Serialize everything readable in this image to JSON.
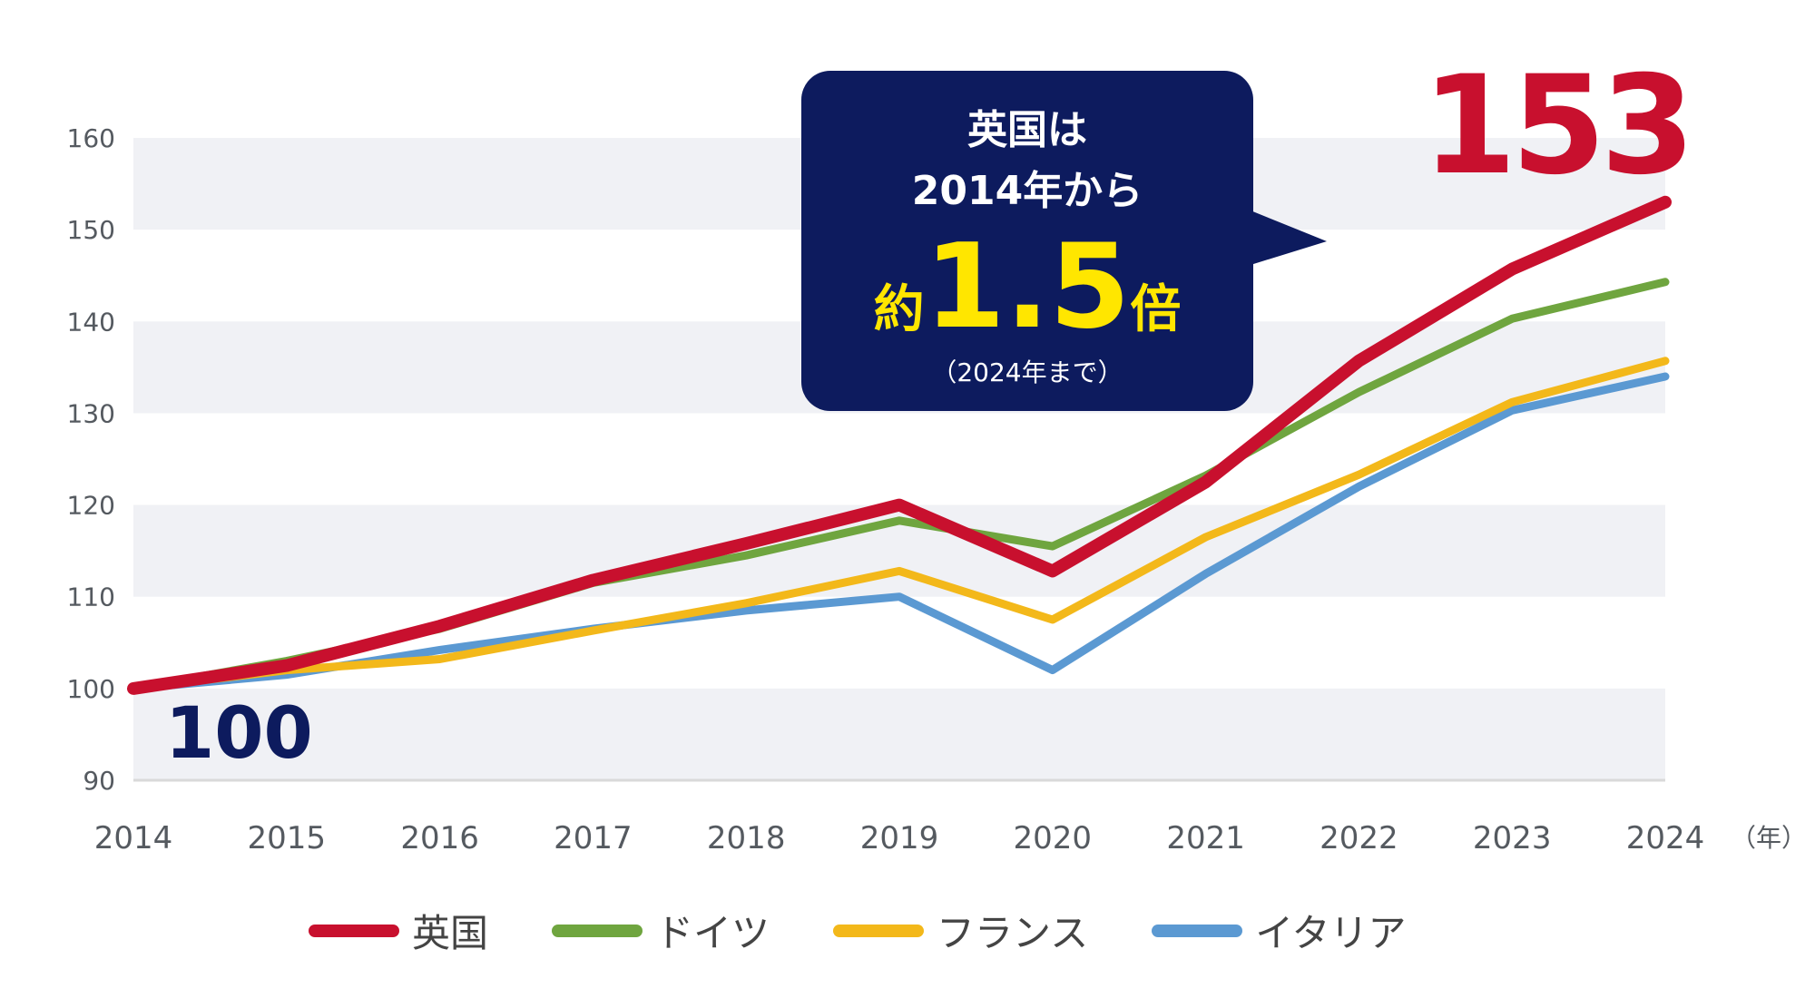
{
  "chart_data": {
    "type": "line",
    "x": [
      "2014",
      "2015",
      "2016",
      "2017",
      "2018",
      "2019",
      "2020",
      "2021",
      "2022",
      "2023",
      "2024"
    ],
    "x_unit": "（年）",
    "y_ticks": [
      90,
      100,
      110,
      120,
      130,
      140,
      150,
      160
    ],
    "ylim": [
      90,
      160
    ],
    "grid": "alternating bands",
    "legend_position": "bottom",
    "series": [
      {
        "name": "英国",
        "color": "#c8102e",
        "values": [
          100,
          102.5,
          106.8,
          111.8,
          115.8,
          120.0,
          112.8,
          122.5,
          135.7,
          145.7,
          153.0
        ]
      },
      {
        "name": "ドイツ",
        "color": "#6fa53f",
        "values": [
          100,
          103.0,
          106.5,
          111.5,
          114.5,
          118.3,
          115.5,
          123.2,
          132.3,
          140.3,
          144.3
        ]
      },
      {
        "name": "フランス",
        "color": "#f3b81a",
        "values": [
          100,
          102.0,
          103.2,
          106.3,
          109.3,
          112.8,
          107.5,
          116.5,
          123.3,
          131.2,
          135.7
        ]
      },
      {
        "name": "イタリア",
        "color": "#5b99d2",
        "values": [
          100,
          101.5,
          104.2,
          106.5,
          108.5,
          110.0,
          102.0,
          112.5,
          122.0,
          130.3,
          134.0
        ]
      }
    ],
    "annotations": {
      "start_label": "100",
      "end_label": "153",
      "callout_line1": "英国は",
      "callout_line2": "2014年から",
      "callout_prefix": "約",
      "callout_value": "1.5",
      "callout_suffix": "倍",
      "callout_note": "（2024年まで）"
    }
  },
  "colors": {
    "band": "#f0f1f5",
    "axis": "#d9d9d9",
    "callout_bg": "#0d1b5e",
    "callout_highlight": "#ffe600",
    "start_label": "#0d1b5e",
    "end_label": "#c8102e"
  }
}
